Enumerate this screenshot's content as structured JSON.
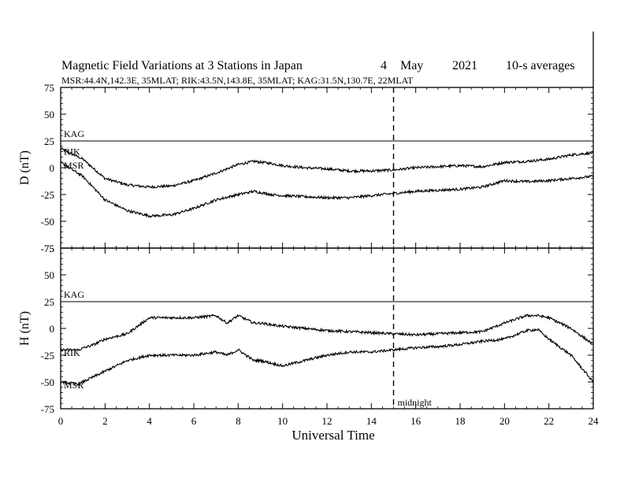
{
  "chart_data": {
    "type": "line",
    "title": "Magnetic Field Variations at 3 Stations in Japan",
    "date": {
      "day": "4",
      "month": "May",
      "year": "2021"
    },
    "averaging": "10-s averages",
    "subtitle": "MSR:44.4N,142.3E, 35MLAT;  RIK:43.5N,143.8E, 35MLAT;  KAG:31.5N,130.7E, 22MLAT",
    "xlabel": "Universal Time",
    "xlim": [
      0,
      24
    ],
    "x_ticks": [
      0,
      2,
      4,
      6,
      8,
      10,
      12,
      14,
      16,
      18,
      20,
      22,
      24
    ],
    "ylim": [
      -75,
      75
    ],
    "y_ticks": [
      75,
      50,
      25,
      0,
      -25,
      -50,
      -75
    ],
    "grid": false,
    "colors": {
      "line": "#000000",
      "background": "#ffffff"
    },
    "marker": {
      "x": 15,
      "style": "dashed",
      "label": "midnight"
    },
    "panels": [
      {
        "ylabel": "D (nT)",
        "series": [
          {
            "name": "KAG",
            "label": "KAG",
            "x": [
              0,
              24
            ],
            "values": [
              25,
              25
            ]
          },
          {
            "name": "RIK",
            "label": "RIK",
            "x": [
              0,
              1,
              2,
              3,
              4,
              5,
              6,
              7,
              8,
              8.7,
              9.5,
              10,
              11,
              12,
              13,
              14,
              15,
              16,
              17,
              18,
              19,
              20,
              21,
              22,
              23,
              24
            ],
            "values": [
              18,
              8,
              -10,
              -16,
              -18,
              -17,
              -12,
              -5,
              3,
              6,
              4,
              2,
              0,
              -1,
              -3,
              -3,
              -2,
              0,
              1,
              2,
              1,
              5,
              6,
              8,
              12,
              14
            ]
          },
          {
            "name": "MSR",
            "label": "MSR",
            "x": [
              0,
              1,
              2,
              3,
              4,
              5,
              6,
              7,
              8,
              8.7,
              9.5,
              10,
              11,
              12,
              13,
              14,
              15,
              16,
              17,
              18,
              19,
              20,
              21,
              22,
              23,
              24
            ],
            "values": [
              5,
              -8,
              -30,
              -40,
              -45,
              -44,
              -38,
              -30,
              -25,
              -22,
              -25,
              -26,
              -27,
              -28,
              -28,
              -26,
              -24,
              -22,
              -21,
              -20,
              -18,
              -12,
              -13,
              -12,
              -10,
              -8
            ]
          }
        ]
      },
      {
        "ylabel": "H (nT)",
        "series": [
          {
            "name": "KAG",
            "label": "KAG",
            "x": [
              0,
              24
            ],
            "values": [
              25,
              25
            ]
          },
          {
            "name": "RIK",
            "label": "RIK",
            "x": [
              0,
              0.8,
              1.5,
              2,
              3,
              4,
              5,
              6,
              7,
              7.5,
              8,
              8.7,
              9,
              10,
              11,
              12,
              13,
              14,
              15,
              16,
              17,
              18,
              19,
              20,
              21,
              21.5,
              22,
              23,
              24
            ],
            "values": [
              -20,
              -20,
              -15,
              -10,
              -5,
              10,
              10,
              10,
              12,
              5,
              12,
              5,
              5,
              2,
              0,
              -2,
              -3,
              -4,
              -5,
              -6,
              -5,
              -4,
              -3,
              5,
              12,
              12,
              10,
              0,
              -15
            ]
          },
          {
            "name": "MSR",
            "label": "MSR",
            "x": [
              0,
              0.8,
              1.5,
              2,
              3,
              4,
              5,
              6,
              7,
              7.5,
              8,
              8.7,
              9,
              10,
              11,
              12,
              13,
              14,
              15,
              16,
              17,
              18,
              19,
              20,
              21,
              21.5,
              22,
              23,
              24
            ],
            "values": [
              -50,
              -52,
              -45,
              -40,
              -30,
              -25,
              -25,
              -25,
              -22,
              -25,
              -20,
              -30,
              -30,
              -35,
              -30,
              -25,
              -22,
              -22,
              -20,
              -18,
              -17,
              -15,
              -12,
              -10,
              -2,
              -1,
              -10,
              -25,
              -50
            ]
          }
        ]
      }
    ]
  }
}
